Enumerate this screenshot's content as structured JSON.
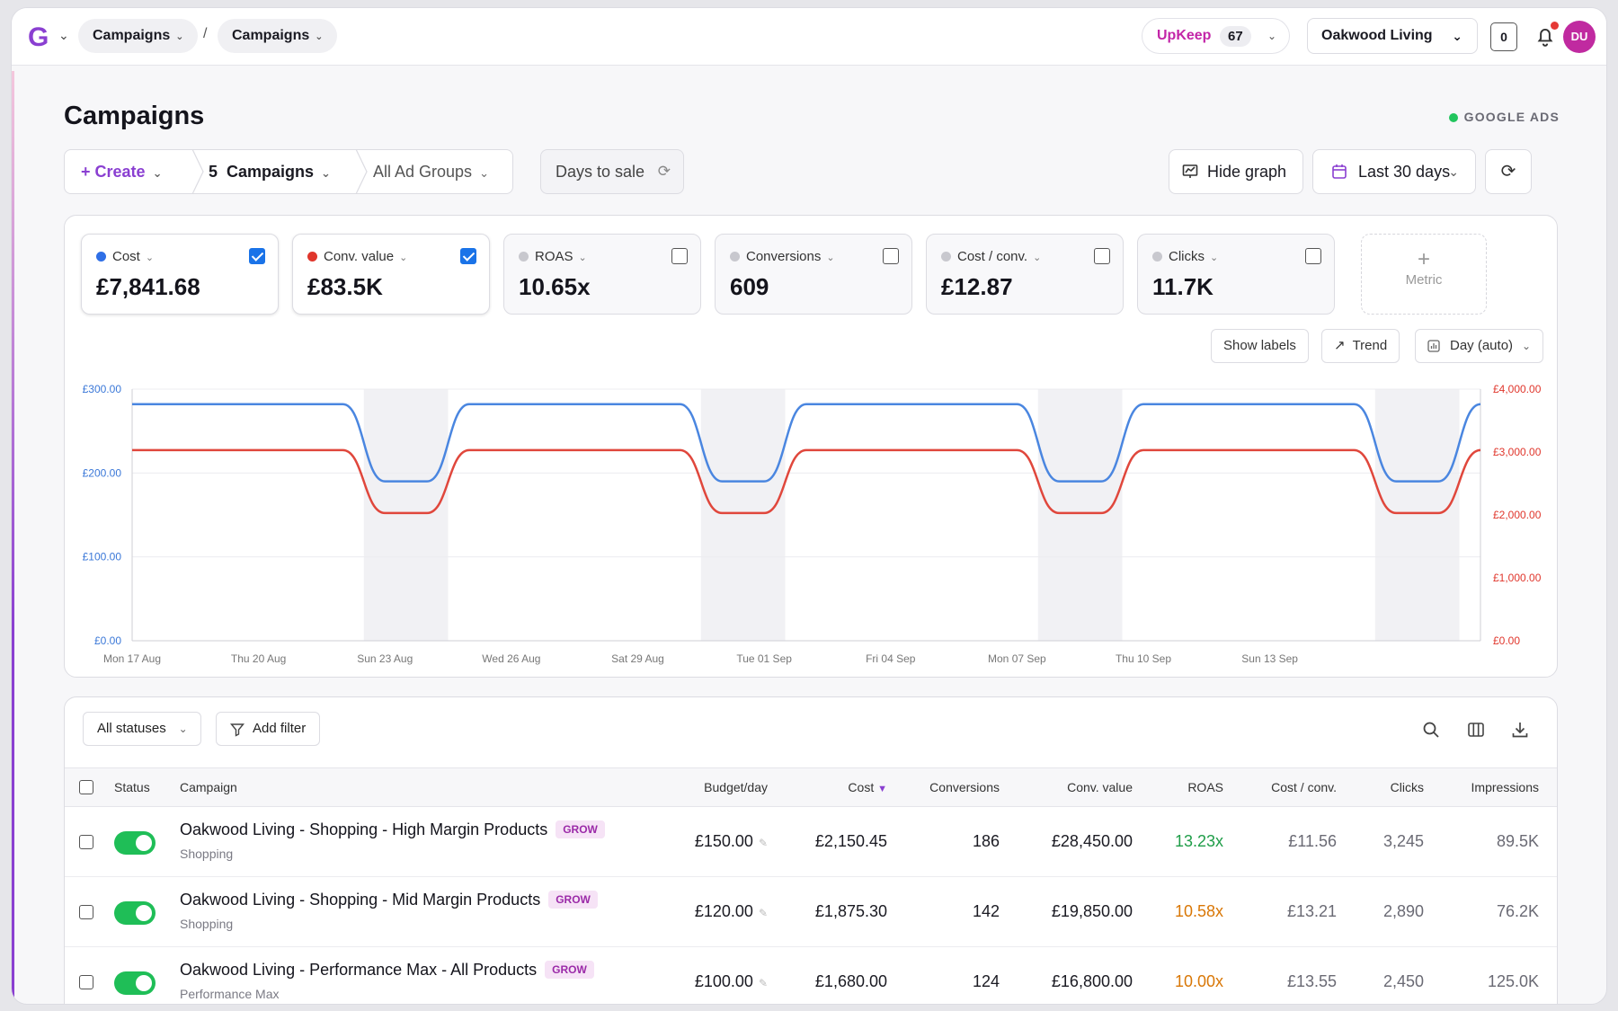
{
  "topbar": {
    "logo": "G",
    "breadcrumbs": [
      "Campaigns",
      "Campaigns"
    ],
    "breadcrumb_separator": "/",
    "upkeep": {
      "name": "UpKeep",
      "count": "67"
    },
    "account": "Oakwood Living",
    "counter": "0",
    "avatar_initials": "DU"
  },
  "header": {
    "title": "Campaigns",
    "platform": "GOOGLE ADS",
    "create_label": "Create",
    "campaigns_selector": "5  Campaigns",
    "ad_groups_selector": "All Ad Groups",
    "days_to_sale": "Days to sale",
    "hide_graph": "Hide graph",
    "date_range": "Last 30 days"
  },
  "metrics": [
    {
      "label": "Cost",
      "value": "£7,841.68",
      "color": "#2f6fe6",
      "checked": true
    },
    {
      "label": "Conv. value",
      "value": "£83.5K",
      "color": "#e0362c",
      "checked": true
    },
    {
      "label": "ROAS",
      "value": "10.65x",
      "color": "#c8c8ce",
      "checked": false
    },
    {
      "label": "Conversions",
      "value": "609",
      "color": "#c8c8ce",
      "checked": false
    },
    {
      "label": "Cost / conv.",
      "value": "£12.87",
      "color": "#c8c8ce",
      "checked": false
    },
    {
      "label": "Clicks",
      "value": "11.7K",
      "color": "#c8c8ce",
      "checked": false
    }
  ],
  "add_metric_label": "Metric",
  "chart_controls": {
    "show_labels": "Show labels",
    "trend": "Trend",
    "granularity": "Day (auto)"
  },
  "chart_data": {
    "type": "line",
    "x_tick_labels": [
      "Mon 17 Aug",
      "Thu 20 Aug",
      "Sun 23 Aug",
      "Wed 26 Aug",
      "Sat 29 Aug",
      "Tue 01 Sep",
      "Fri 04 Sep",
      "Mon 07 Sep",
      "Thu 10 Sep",
      "Sun 13 Sep"
    ],
    "y_left_ticks": [
      "£0.00",
      "£100.00",
      "£200.00",
      "£300.00"
    ],
    "y_right_ticks": [
      "£0.00",
      "£1,000.00",
      "£2,000.00",
      "£3,000.00",
      "£4,000.00"
    ],
    "ylim_left": [
      0,
      300
    ],
    "ylim_right": [
      0,
      4000
    ],
    "weekend_shading": true,
    "series": [
      {
        "name": "Cost",
        "axis": "left",
        "color": "#4a86e0",
        "values": [
          282,
          282,
          282,
          282,
          282,
          282,
          190,
          190,
          282,
          282,
          282,
          282,
          282,
          282,
          190,
          190,
          282,
          282,
          282,
          282,
          282,
          282,
          190,
          190,
          282,
          282,
          282,
          282,
          282,
          282,
          190,
          190,
          282
        ]
      },
      {
        "name": "Conv. value",
        "axis": "right",
        "color": "#e0473c",
        "values": [
          3030,
          3030,
          3030,
          3030,
          3030,
          3030,
          2030,
          2030,
          3030,
          3030,
          3030,
          3030,
          3030,
          3030,
          2030,
          2030,
          3030,
          3030,
          3030,
          3030,
          3030,
          3030,
          2030,
          2030,
          3030,
          3030,
          3030,
          3030,
          3030,
          3030,
          2030,
          2030,
          3030
        ]
      }
    ]
  },
  "table": {
    "status_filter": "All statuses",
    "add_filter": "Add filter",
    "columns": [
      "Status",
      "Campaign",
      "Budget/day",
      "Cost",
      "Conversions",
      "Conv. value",
      "ROAS",
      "Cost / conv.",
      "Clicks",
      "Impressions"
    ],
    "sort_indicator": "▼",
    "rows": [
      {
        "name": "Oakwood Living - Shopping - High Margin Products",
        "tag": "GROW",
        "type": "Shopping",
        "budget": "£150.00",
        "cost": "£2,150.45",
        "conversions": "186",
        "conv_value": "£28,450.00",
        "roas": "13.23x",
        "roas_color": "#1f9d48",
        "cost_conv": "£11.56",
        "clicks": "3,245",
        "impressions": "89.5K"
      },
      {
        "name": "Oakwood Living - Shopping - Mid Margin Products",
        "tag": "GROW",
        "type": "Shopping",
        "budget": "£120.00",
        "cost": "£1,875.30",
        "conversions": "142",
        "conv_value": "£19,850.00",
        "roas": "10.58x",
        "roas_color": "#d97706",
        "cost_conv": "£13.21",
        "clicks": "2,890",
        "impressions": "76.2K"
      },
      {
        "name": "Oakwood Living - Performance Max - All Products",
        "tag": "GROW",
        "type": "Performance Max",
        "budget": "£100.00",
        "cost": "£1,680.00",
        "conversions": "124",
        "conv_value": "£16,800.00",
        "roas": "10.00x",
        "roas_color": "#d97706",
        "cost_conv": "£13.55",
        "clicks": "2,450",
        "impressions": "125.0K"
      }
    ]
  }
}
